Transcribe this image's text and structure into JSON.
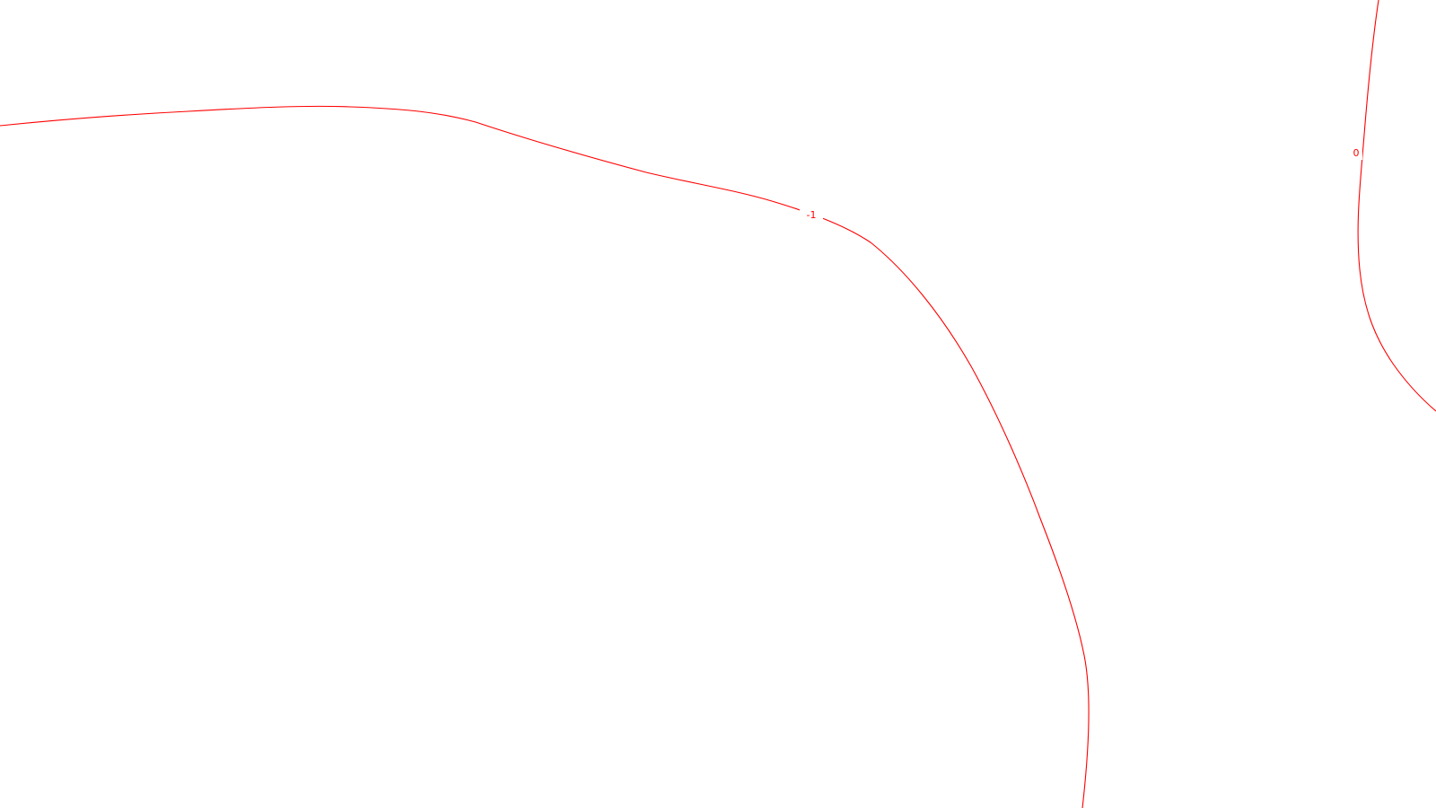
{
  "chart_data": {
    "type": "line",
    "title": "",
    "xlabel": "",
    "ylabel": "",
    "grid": false,
    "line_color": "#ff0000",
    "background_color": "#ffffff",
    "series": [
      {
        "label": "-1",
        "level": -1
      },
      {
        "label": "0",
        "level": 0
      }
    ]
  }
}
